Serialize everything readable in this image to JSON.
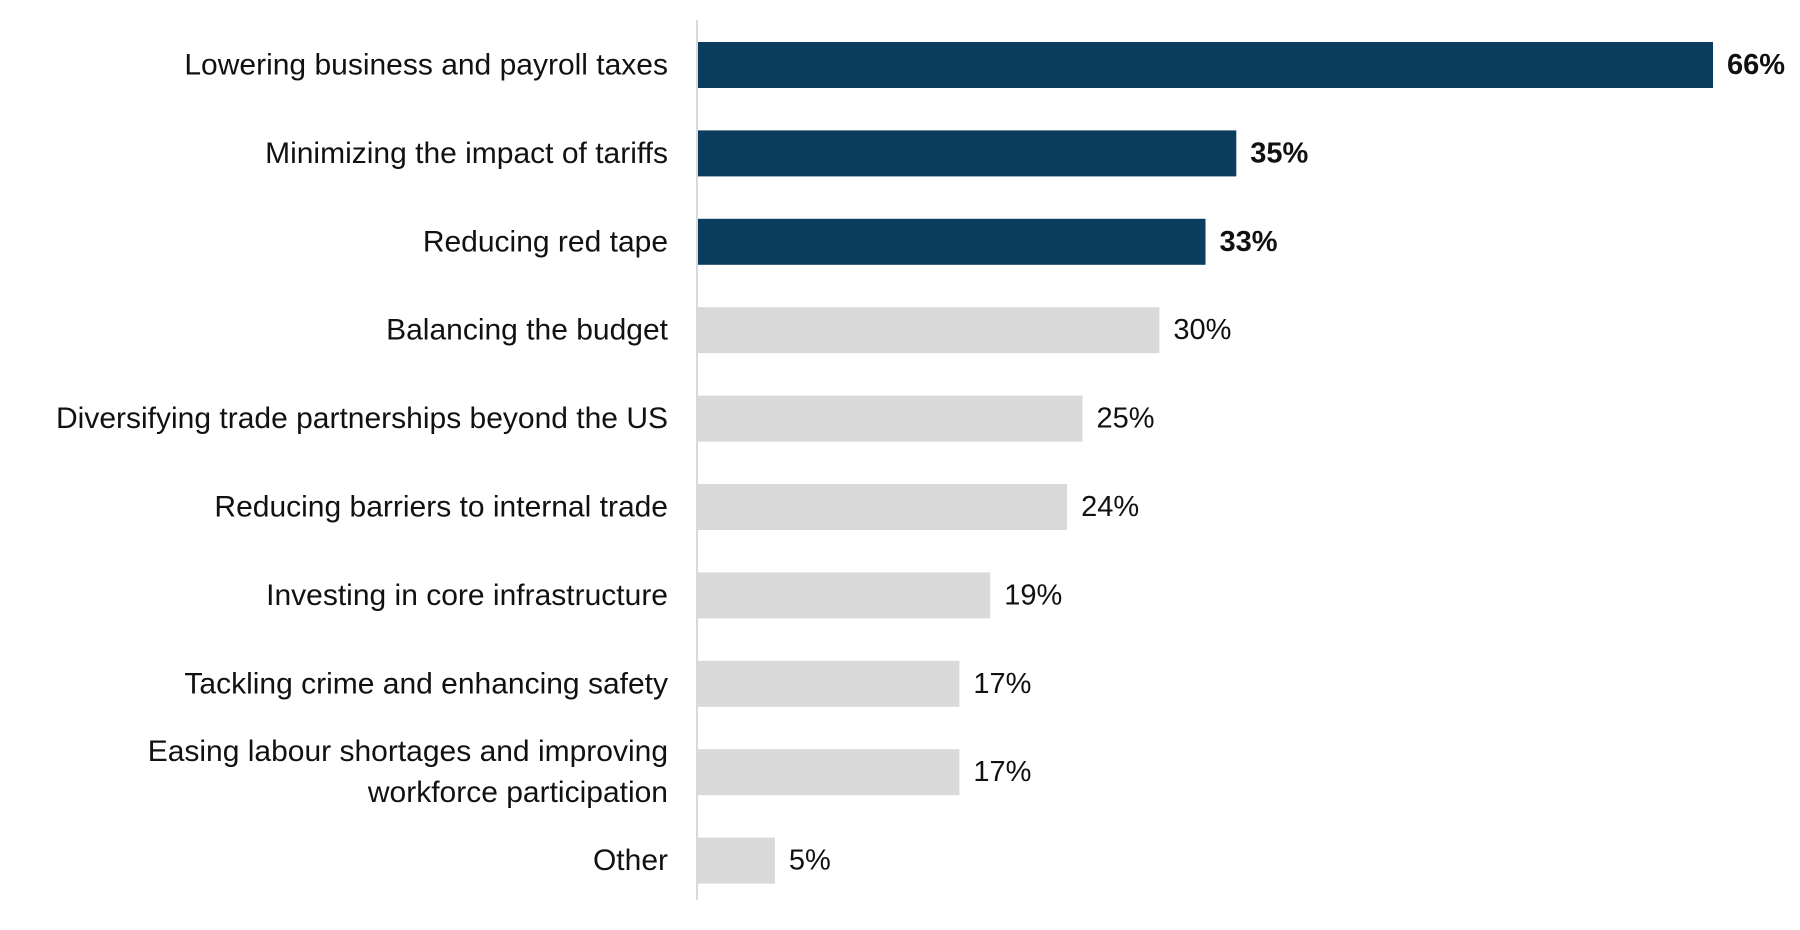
{
  "chart_data": {
    "type": "bar",
    "orientation": "horizontal",
    "title": "",
    "xlabel": "",
    "ylabel": "",
    "xlim": [
      0,
      66
    ],
    "grid": false,
    "legend": "none",
    "value_suffix": "%",
    "colors": {
      "highlight": "#0b3d5e",
      "default": "#d9d9d9",
      "axis": "#d9d9d9"
    },
    "categories": [
      [
        "Lowering business and payroll taxes"
      ],
      [
        "Minimizing the impact of tariffs"
      ],
      [
        "Reducing red tape"
      ],
      [
        "Balancing the budget"
      ],
      [
        "Diversifying trade partnerships beyond the US"
      ],
      [
        "Reducing barriers to internal trade"
      ],
      [
        "Investing in core infrastructure"
      ],
      [
        "Tackling crime and enhancing safety"
      ],
      [
        "Easing labour shortages and improving",
        "workforce participation"
      ],
      [
        "Other"
      ]
    ],
    "values": [
      66,
      35,
      33,
      30,
      25,
      24,
      19,
      17,
      17,
      5
    ],
    "value_labels": [
      "66%",
      "35%",
      "33%",
      "30%",
      "25%",
      "24%",
      "19%",
      "17%",
      "17%",
      "5%"
    ],
    "highlighted": [
      true,
      true,
      true,
      false,
      false,
      false,
      false,
      false,
      false,
      false
    ]
  }
}
